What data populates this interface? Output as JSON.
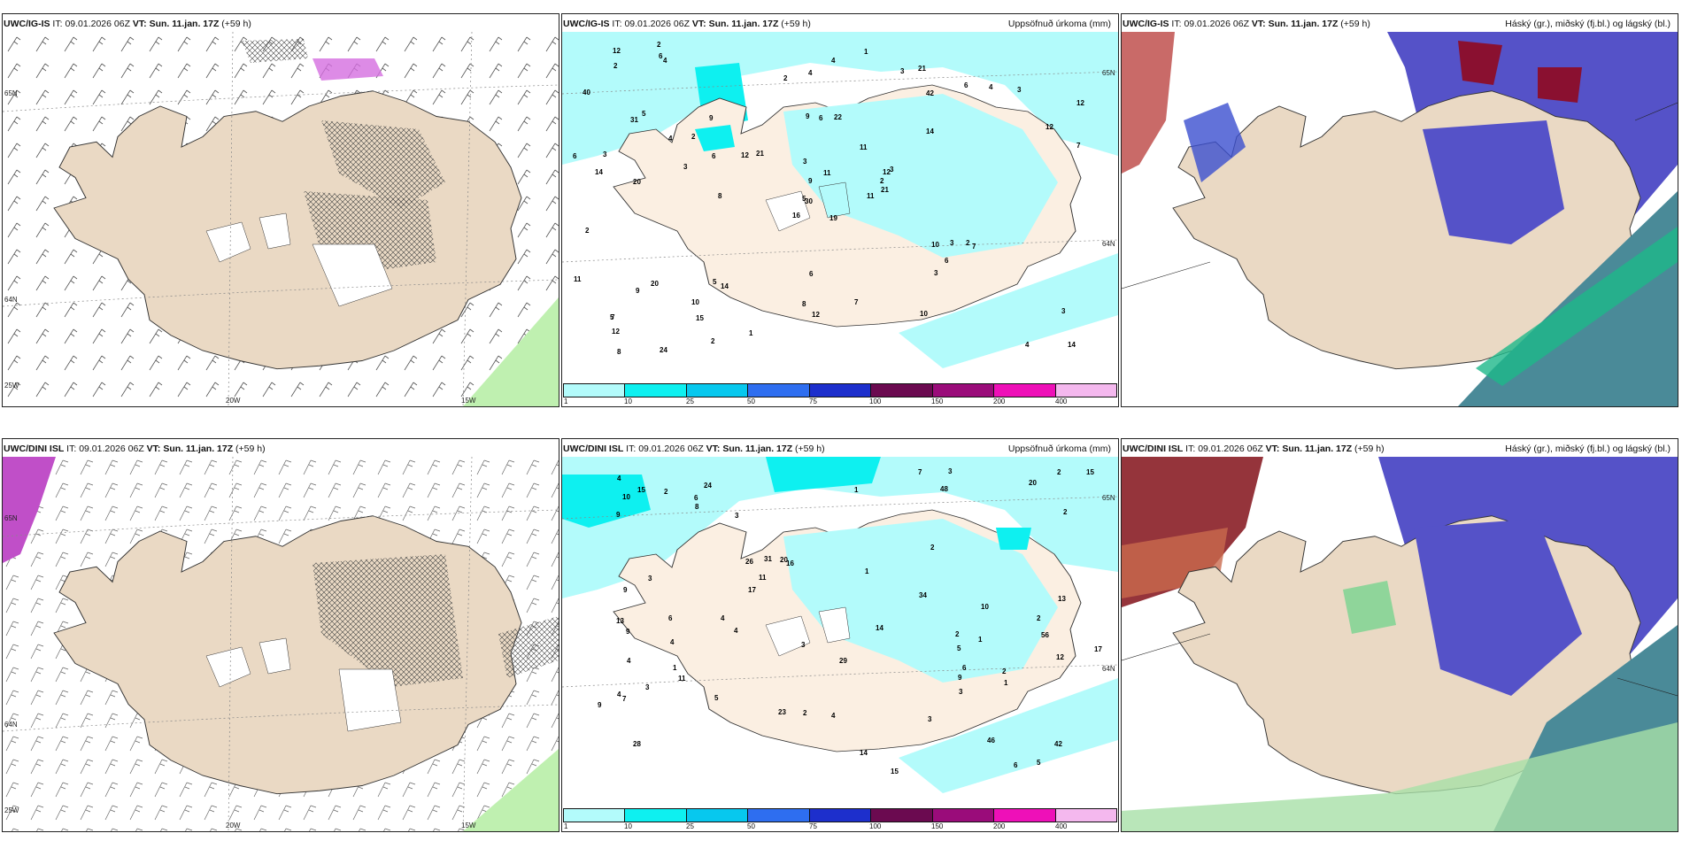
{
  "panels": {
    "tl": {
      "model": "UWC/IG-IS",
      "it_label": "IT:",
      "it": "09.01.2026 06Z",
      "vt_label": "VT: Sun. 11.jan. 17Z",
      "lead": "(+59 h)",
      "lat_top": "65N",
      "lat_mid": "64N",
      "lon_left": "25W",
      "lon_a": "20W",
      "lon_b": "15W"
    },
    "tm": {
      "model": "UWC/IG-IS",
      "it_label": "IT:",
      "it": "09.01.2026 06Z",
      "vt_label": "VT: Sun. 11.jan. 17Z",
      "lead": "(+59 h)",
      "right_title": "Uppsöfnuð úrkoma (mm)",
      "lat_top": "65N",
      "lat_mid": "64N"
    },
    "tr": {
      "model": "UWC/IG-IS",
      "it_label": "IT:",
      "it": "09.01.2026 06Z",
      "vt_label": "VT: Sun. 11.jan. 17Z",
      "lead": "(+59 h)",
      "right_title": "Háský (gr.), miðský (fj.bl.) og lágský (bl.)"
    },
    "bl": {
      "model": "UWC/DINI ISL",
      "it_label": "IT:",
      "it": "09.01.2026 06Z",
      "vt_label": "VT: Sun. 11.jan. 17Z",
      "lead": "(+59 h)",
      "lat_top": "65N",
      "lat_mid": "64N",
      "lon_left": "25W",
      "lon_a": "20W",
      "lon_b": "15W"
    },
    "bm": {
      "model": "UWC/DINI ISL",
      "it_label": "IT:",
      "it": "09.01.2026 06Z",
      "vt_label": "VT: Sun. 11.jan. 17Z",
      "lead": "(+59 h)",
      "right_title": "Uppsöfnuð úrkoma (mm)",
      "lat_top": "65N",
      "lat_mid": "64N"
    },
    "br": {
      "model": "UWC/DINI ISL",
      "it_label": "IT:",
      "it": "09.01.2026 06Z",
      "vt_label": "VT: Sun. 11.jan. 17Z",
      "lead": "(+59 h)",
      "right_title": "Háský (gr.), miðský (fj.bl.) og lágský (bl.)"
    }
  },
  "colorbar": {
    "labels": [
      "1",
      "10",
      "25",
      "50",
      "75",
      "100",
      "150",
      "200",
      "400"
    ],
    "colors": [
      "#b3fbfb",
      "#0ef0f0",
      "#07c8ee",
      "#2e6ef0",
      "#1d2fcc",
      "#6b0a50",
      "#9a0c7a",
      "#ee10b8",
      "#f4b8ee"
    ]
  },
  "precip_values_top": [
    "19",
    "31",
    "30",
    "7",
    "12",
    "14",
    "21",
    "22",
    "42",
    "11",
    "4",
    "14",
    "20",
    "12",
    "16",
    "14",
    "24",
    "9",
    "11",
    "20",
    "21",
    "12",
    "15",
    "6",
    "3",
    "7",
    "5",
    "4",
    "14",
    "10",
    "7",
    "5",
    "8",
    "9",
    "9",
    "6",
    "5",
    "4",
    "3",
    "2",
    "1",
    "12",
    "3",
    "3",
    "2",
    "6",
    "2",
    "8",
    "12",
    "21",
    "9",
    "12",
    "40",
    "6",
    "10",
    "10",
    "6",
    "12",
    "7",
    "3",
    "4",
    "8",
    "3",
    "2",
    "4",
    "2",
    "3",
    "2",
    "11",
    "11",
    "6",
    "1",
    "3",
    "6",
    "5",
    "2",
    "4",
    "2",
    "3"
  ],
  "precip_values_bottom": [
    "5",
    "56",
    "28",
    "24",
    "16",
    "46",
    "7",
    "48",
    "26",
    "15",
    "9",
    "13",
    "10",
    "42",
    "23",
    "13",
    "29",
    "14",
    "20",
    "11",
    "15",
    "20",
    "17",
    "12",
    "7",
    "6",
    "6",
    "9",
    "8",
    "10",
    "14",
    "3",
    "11",
    "4",
    "2",
    "1",
    "9",
    "6",
    "4",
    "3",
    "2",
    "3",
    "5",
    "2",
    "2",
    "5",
    "9",
    "15",
    "34",
    "9",
    "17",
    "31",
    "2",
    "2",
    "3",
    "6",
    "2",
    "4",
    "4",
    "2",
    "1",
    "3",
    "1",
    "4",
    "1",
    "3",
    "3",
    "1",
    "4",
    "4"
  ]
}
